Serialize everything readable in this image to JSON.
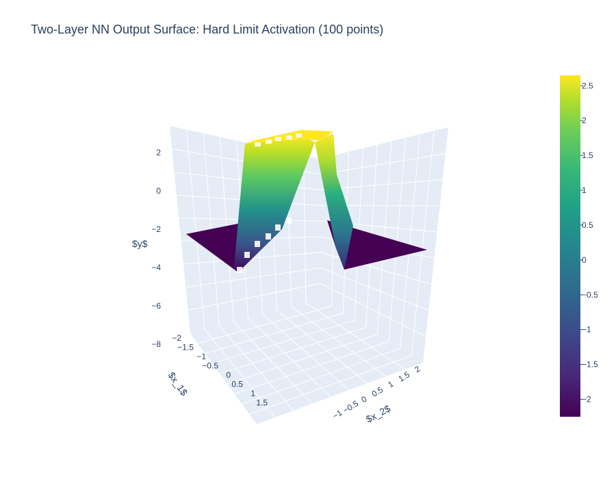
{
  "chart_data": {
    "type": "surface",
    "title": "Two-Layer NN Output Surface: Hard Limit Activation (100 points)",
    "x_label": "$x_1$",
    "y_label": "$x_2$",
    "z_label": "$y$",
    "x_ticks": [
      "−2",
      "−1.5",
      "−1",
      "−0.5",
      "0",
      "0.5",
      "1",
      "1.5"
    ],
    "y_ticks": [
      "−1",
      "−0.5",
      "0",
      "0.5",
      "1",
      "1.5",
      "2"
    ],
    "z_ticks": [
      "2",
      "0",
      "−2",
      "−4",
      "−6",
      "−8"
    ],
    "x_range": [
      -2,
      2
    ],
    "y_range": [
      -2,
      2
    ],
    "z_range": [
      -8,
      3
    ],
    "surface": {
      "base_value": -2.25,
      "ridge_value": 2.65,
      "ridge_center_x2": 0,
      "description_of_shape": "step-like ridge"
    },
    "colorscale": "Viridis",
    "colorbar": {
      "ticks": [
        "2.5",
        "2",
        "1.5",
        "1",
        "0.5",
        "0",
        "−0.5",
        "−1",
        "−1.5",
        "−2"
      ],
      "tick_values": [
        2.5,
        2,
        1.5,
        1,
        0.5,
        0,
        -0.5,
        -1,
        -1.5,
        -2
      ],
      "min": -2.25,
      "max": 2.65
    },
    "grid": true
  }
}
